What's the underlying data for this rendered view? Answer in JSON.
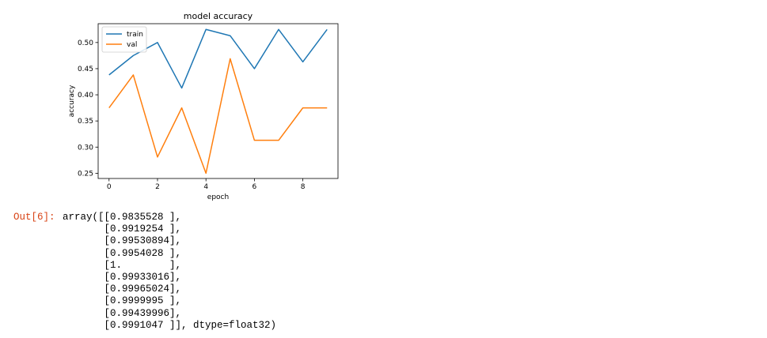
{
  "chart_data": {
    "type": "line",
    "title": "model accuracy",
    "xlabel": "epoch",
    "ylabel": "accuracy",
    "xlim": [
      -0.45,
      9.45
    ],
    "ylim": [
      0.24,
      0.536
    ],
    "xticks": [
      0,
      2,
      4,
      6,
      8
    ],
    "yticks": [
      0.25,
      0.3,
      0.35,
      0.4,
      0.45,
      0.5
    ],
    "xtick_labels": [
      "0",
      "2",
      "4",
      "6",
      "8"
    ],
    "ytick_labels": [
      "0.25",
      "0.30",
      "0.35",
      "0.40",
      "0.45",
      "0.50"
    ],
    "grid": false,
    "legend_position": "top-left",
    "x": [
      0,
      1,
      2,
      3,
      4,
      5,
      6,
      7,
      8,
      9
    ],
    "series": [
      {
        "name": "train",
        "color": "#1f77b4",
        "values": [
          0.438,
          0.475,
          0.5,
          0.413,
          0.525,
          0.513,
          0.45,
          0.525,
          0.463,
          0.525
        ]
      },
      {
        "name": "val",
        "color": "#ff7f0e",
        "values": [
          0.375,
          0.438,
          0.281,
          0.375,
          0.25,
          0.469,
          0.313,
          0.313,
          0.375,
          0.375
        ]
      }
    ]
  },
  "output": {
    "prompt": "Out[6]:",
    "lines": [
      "array([[0.9835528 ],",
      "       [0.9919254 ],",
      "       [0.99530894],",
      "       [0.9954028 ],",
      "       [1.        ],",
      "       [0.99933016],",
      "       [0.99965024],",
      "       [0.9999995 ],",
      "       [0.99439996],",
      "       [0.9991047 ]], dtype=float32)"
    ]
  }
}
